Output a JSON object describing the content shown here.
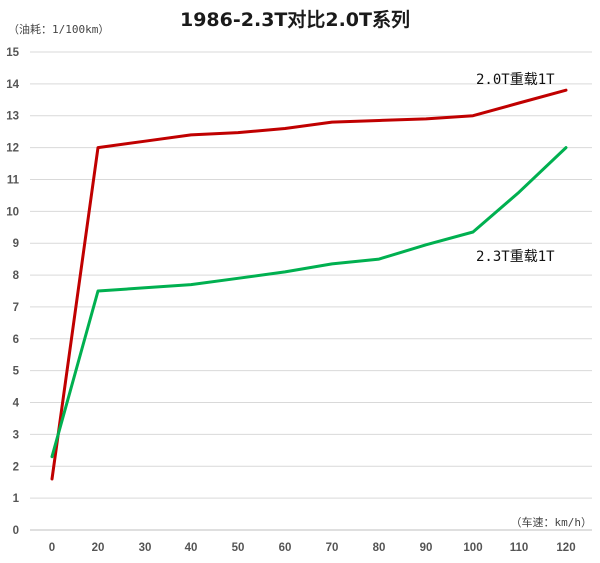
{
  "chart_data": {
    "type": "line",
    "title": "1986-2.3T对比2.0T系列",
    "ylabel": "（油耗：1/100km）",
    "xlabel": "（车速：km/h）",
    "categories": [
      "0",
      "20",
      "30",
      "40",
      "50",
      "60",
      "70",
      "80",
      "90",
      "100",
      "110",
      "120"
    ],
    "ylim": [
      0,
      15
    ],
    "yticks": [
      0,
      1,
      2,
      3,
      4,
      5,
      6,
      7,
      8,
      9,
      10,
      11,
      12,
      13,
      14,
      15
    ],
    "grid": true,
    "series": [
      {
        "name": "2.0T重载1T",
        "color": "#c00000",
        "values": [
          1.6,
          12.0,
          12.2,
          12.4,
          12.47,
          12.6,
          12.8,
          12.85,
          12.9,
          13.0,
          13.4,
          13.8
        ]
      },
      {
        "name": "2.3T重载1T",
        "color": "#00b050",
        "values": [
          2.3,
          7.5,
          7.6,
          7.7,
          7.9,
          8.1,
          8.35,
          8.5,
          8.95,
          9.35,
          10.6,
          12.0
        ]
      }
    ]
  }
}
